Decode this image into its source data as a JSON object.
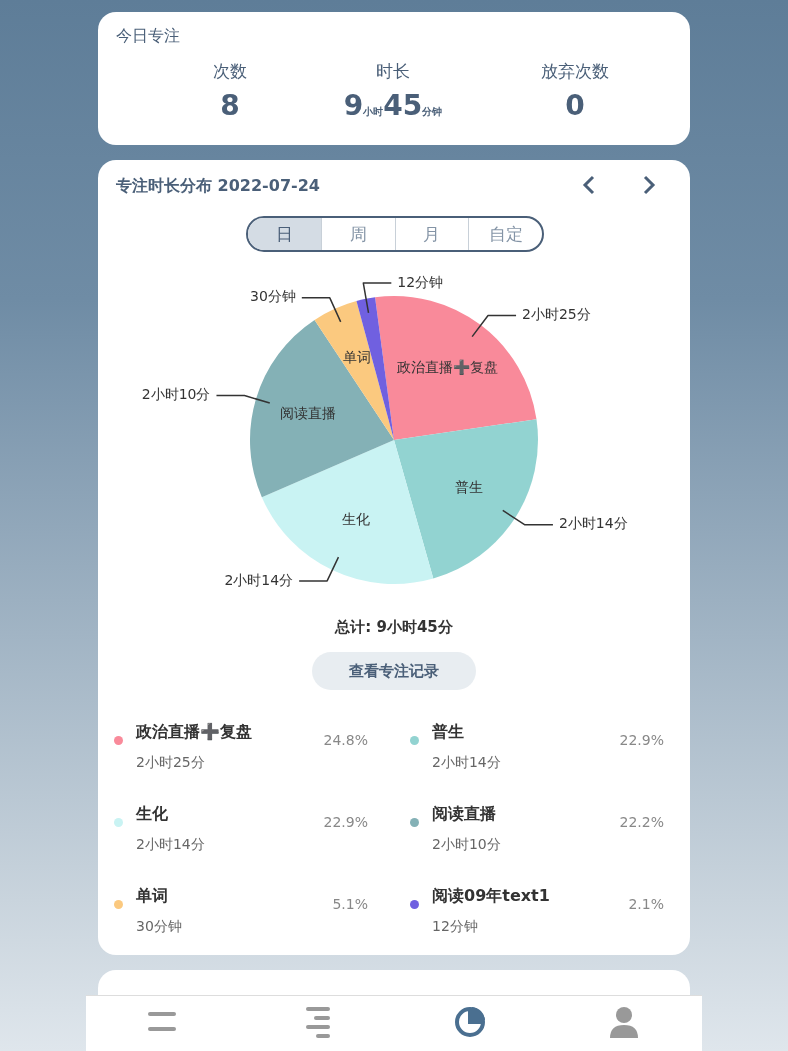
{
  "chart_data": {
    "type": "pie",
    "title": "专注时长分布 2022-07-24",
    "categories": [
      "政治直播➕复盘",
      "普生",
      "生化",
      "阅读直播",
      "单词",
      "阅读09年text1"
    ],
    "values": [
      24.8,
      22.9,
      22.9,
      22.2,
      5.1,
      2.1
    ],
    "colors": [
      "#f98a9a",
      "#92d3d1",
      "#c9f3f3",
      "#84b1b6",
      "#fbc97f",
      "#7060e0"
    ],
    "legend": "bottom",
    "value_labels": [
      "24.8%",
      "22.9%",
      "22.9%",
      "22.2%",
      "5.1%",
      "2.1%"
    ],
    "annotations": [
      "今日专注",
      "次数",
      "8",
      "时长",
      "9小时45分钟",
      "放弃次数",
      "0",
      "日",
      "周",
      "月",
      "自定",
      "总计: 9小时45分",
      "查看专注记录",
      {
        "text": "2小时25分",
        "x": "政治直播➕复盘"
      },
      {
        "text": "2小时14分",
        "x": "普生"
      },
      {
        "text": "2小时14分",
        "x": "生化"
      },
      {
        "text": "2小时10分",
        "x": "阅读直播"
      },
      {
        "text": "30分钟",
        "x": "单词"
      },
      {
        "text": "12分钟",
        "x": "阅读09年text1"
      }
    ]
  }
}
